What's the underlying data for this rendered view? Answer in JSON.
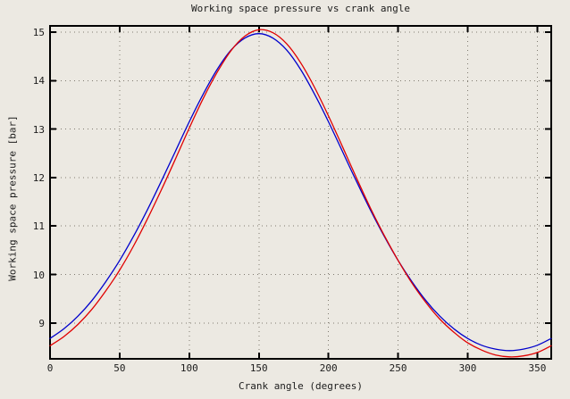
{
  "colors": {
    "background": "#ece9e2",
    "foreground": "#1c1c1c",
    "grid_dots": "#7f7a70",
    "border": "#000000"
  },
  "chart_data": {
    "type": "line",
    "title": "Working space pressure vs crank angle",
    "xlabel": "Crank angle (degrees)",
    "ylabel": "Working space pressure [bar]",
    "xlim": [
      0,
      360
    ],
    "ylim": [
      8.26,
      15.13
    ],
    "xticks": [
      0,
      50,
      100,
      150,
      200,
      250,
      300,
      350
    ],
    "yticks": [
      9,
      10,
      11,
      12,
      13,
      14,
      15
    ],
    "grid": true,
    "legend": "none",
    "x": [
      0,
      10,
      20,
      30,
      40,
      50,
      60,
      70,
      80,
      90,
      100,
      110,
      120,
      130,
      140,
      150,
      160,
      170,
      180,
      190,
      200,
      210,
      220,
      230,
      240,
      250,
      260,
      270,
      280,
      290,
      300,
      310,
      320,
      330,
      340,
      350,
      360
    ],
    "series": [
      {
        "name": "blue-curve",
        "color": "#0000cc",
        "peak": {
          "x": 150,
          "y": 14.97
        },
        "trough": {
          "x": 330,
          "y": 8.43
        },
        "values": [
          8.68,
          8.88,
          9.14,
          9.46,
          9.85,
          10.29,
          10.79,
          11.34,
          11.93,
          12.54,
          13.15,
          13.72,
          14.23,
          14.63,
          14.88,
          14.97,
          14.88,
          14.63,
          14.23,
          13.72,
          13.15,
          12.54,
          11.93,
          11.34,
          10.79,
          10.29,
          9.85,
          9.46,
          9.14,
          8.88,
          8.68,
          8.54,
          8.46,
          8.43,
          8.46,
          8.54,
          8.68
        ]
      },
      {
        "name": "red-curve",
        "color": "#e00000",
        "peak": {
          "x": 152,
          "y": 15.05
        },
        "trough": {
          "x": 332,
          "y": 8.3
        },
        "values": [
          8.53,
          8.72,
          8.97,
          9.28,
          9.66,
          10.09,
          10.59,
          11.15,
          11.75,
          12.38,
          13.02,
          13.63,
          14.17,
          14.62,
          14.92,
          15.05,
          14.99,
          14.76,
          14.37,
          13.86,
          13.27,
          12.64,
          12.0,
          11.38,
          10.81,
          10.29,
          9.82,
          9.42,
          9.08,
          8.81,
          8.59,
          8.44,
          8.34,
          8.3,
          8.32,
          8.39,
          8.53
        ]
      }
    ]
  }
}
